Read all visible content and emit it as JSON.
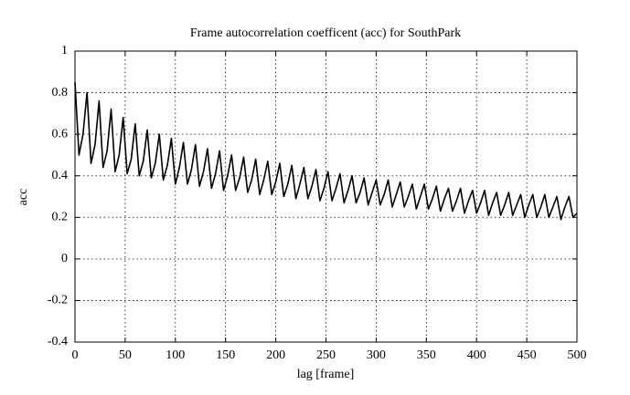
{
  "chart_data": {
    "type": "line",
    "title": "Frame autocorrelation coefficent (acc) for SouthPark",
    "x_label": "lag [frame]",
    "y_label": "acc",
    "xlim": [
      0,
      500
    ],
    "ylim": [
      -0.4,
      1
    ],
    "xticks": [
      0,
      50,
      100,
      150,
      200,
      250,
      300,
      350,
      400,
      450,
      500
    ],
    "yticks": [
      -0.4,
      -0.2,
      0,
      0.2,
      0.4,
      0.6,
      0.8,
      1
    ],
    "grid": true,
    "x": [
      0,
      4,
      8,
      12,
      16,
      20,
      24,
      28,
      32,
      36,
      40,
      44,
      48,
      52,
      56,
      60,
      64,
      68,
      72,
      76,
      80,
      84,
      88,
      92,
      96,
      100,
      104,
      108,
      112,
      116,
      120,
      124,
      128,
      132,
      136,
      140,
      144,
      148,
      152,
      156,
      160,
      164,
      168,
      172,
      176,
      180,
      184,
      188,
      192,
      196,
      200,
      204,
      208,
      212,
      216,
      220,
      224,
      228,
      232,
      236,
      240,
      244,
      248,
      252,
      256,
      260,
      264,
      268,
      272,
      276,
      280,
      284,
      288,
      292,
      296,
      300,
      304,
      308,
      312,
      316,
      320,
      324,
      328,
      332,
      336,
      340,
      344,
      348,
      352,
      356,
      360,
      364,
      368,
      372,
      376,
      380,
      384,
      388,
      392,
      396,
      400,
      404,
      408,
      412,
      416,
      420,
      424,
      428,
      432,
      436,
      440,
      444,
      448,
      452,
      456,
      460,
      464,
      468,
      472,
      476,
      480,
      484,
      488,
      492,
      496,
      500
    ],
    "series": [
      {
        "color": "#000000",
        "values": [
          0.85,
          0.5,
          0.6,
          0.8,
          0.46,
          0.55,
          0.76,
          0.44,
          0.52,
          0.72,
          0.42,
          0.5,
          0.68,
          0.41,
          0.48,
          0.65,
          0.4,
          0.47,
          0.62,
          0.39,
          0.46,
          0.6,
          0.38,
          0.45,
          0.58,
          0.36,
          0.44,
          0.56,
          0.36,
          0.43,
          0.55,
          0.35,
          0.42,
          0.53,
          0.34,
          0.41,
          0.52,
          0.33,
          0.4,
          0.5,
          0.33,
          0.39,
          0.49,
          0.32,
          0.38,
          0.48,
          0.31,
          0.38,
          0.47,
          0.31,
          0.37,
          0.46,
          0.3,
          0.36,
          0.45,
          0.29,
          0.36,
          0.44,
          0.29,
          0.35,
          0.43,
          0.28,
          0.34,
          0.42,
          0.28,
          0.34,
          0.41,
          0.27,
          0.33,
          0.4,
          0.27,
          0.32,
          0.39,
          0.26,
          0.32,
          0.38,
          0.26,
          0.31,
          0.38,
          0.25,
          0.31,
          0.37,
          0.25,
          0.3,
          0.36,
          0.24,
          0.3,
          0.36,
          0.24,
          0.29,
          0.35,
          0.23,
          0.29,
          0.34,
          0.23,
          0.28,
          0.34,
          0.22,
          0.28,
          0.33,
          0.22,
          0.27,
          0.33,
          0.21,
          0.27,
          0.32,
          0.21,
          0.26,
          0.32,
          0.21,
          0.26,
          0.31,
          0.2,
          0.26,
          0.31,
          0.2,
          0.25,
          0.31,
          0.2,
          0.25,
          0.3,
          0.19,
          0.25,
          0.3,
          0.2,
          0.22
        ]
      }
    ]
  }
}
